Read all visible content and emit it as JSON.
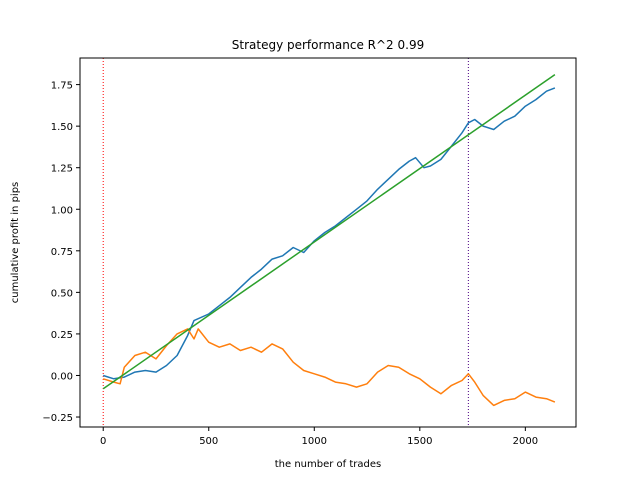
{
  "chart_data": {
    "type": "line",
    "title": "Strategy performance R^2 0.99",
    "xlabel": "the number of trades",
    "ylabel": "cumulative profit in pips",
    "xlim": [
      -110,
      2240
    ],
    "ylim": [
      -0.31,
      1.91
    ],
    "xticks": [
      0,
      500,
      1000,
      1500,
      2000
    ],
    "xtick_labels": [
      "0",
      "500",
      "1000",
      "1500",
      "2000"
    ],
    "yticks": [
      -0.25,
      0.0,
      0.25,
      0.5,
      0.75,
      1.0,
      1.25,
      1.5,
      1.75
    ],
    "ytick_labels": [
      "−0.25",
      "0.00",
      "0.25",
      "0.50",
      "0.75",
      "1.00",
      "1.25",
      "1.50",
      "1.75"
    ],
    "grid": false,
    "series": [
      {
        "color": "#1f77b4",
        "x": [
          0,
          50,
          100,
          150,
          200,
          250,
          300,
          350,
          400,
          430,
          500,
          550,
          600,
          650,
          700,
          750,
          800,
          850,
          900,
          950,
          1000,
          1050,
          1100,
          1150,
          1200,
          1250,
          1300,
          1350,
          1400,
          1450,
          1480,
          1520,
          1550,
          1600,
          1650,
          1700,
          1730,
          1760,
          1800,
          1850,
          1900,
          1950,
          2000,
          2050,
          2100,
          2140
        ],
        "y": [
          0.0,
          -0.02,
          -0.01,
          0.02,
          0.03,
          0.02,
          0.06,
          0.12,
          0.24,
          0.33,
          0.37,
          0.42,
          0.47,
          0.53,
          0.59,
          0.64,
          0.7,
          0.72,
          0.77,
          0.74,
          0.81,
          0.86,
          0.9,
          0.95,
          1.0,
          1.05,
          1.12,
          1.18,
          1.24,
          1.29,
          1.31,
          1.25,
          1.26,
          1.3,
          1.38,
          1.46,
          1.52,
          1.54,
          1.5,
          1.48,
          1.53,
          1.56,
          1.62,
          1.66,
          1.71,
          1.73
        ]
      },
      {
        "color": "#ff7f0e",
        "x": [
          0,
          50,
          80,
          100,
          150,
          200,
          250,
          300,
          350,
          400,
          430,
          450,
          500,
          550,
          600,
          650,
          700,
          750,
          800,
          850,
          900,
          950,
          1000,
          1050,
          1100,
          1150,
          1200,
          1250,
          1300,
          1350,
          1400,
          1450,
          1500,
          1550,
          1600,
          1650,
          1700,
          1730,
          1760,
          1800,
          1850,
          1900,
          1950,
          2000,
          2050,
          2100,
          2140
        ],
        "y": [
          -0.02,
          -0.04,
          -0.05,
          0.05,
          0.12,
          0.14,
          0.1,
          0.18,
          0.25,
          0.28,
          0.22,
          0.28,
          0.2,
          0.17,
          0.19,
          0.15,
          0.17,
          0.14,
          0.19,
          0.16,
          0.08,
          0.03,
          0.01,
          -0.01,
          -0.04,
          -0.05,
          -0.07,
          -0.05,
          0.02,
          0.06,
          0.05,
          0.01,
          -0.02,
          -0.07,
          -0.11,
          -0.06,
          -0.03,
          0.01,
          -0.04,
          -0.12,
          -0.18,
          -0.15,
          -0.14,
          -0.1,
          -0.13,
          -0.14,
          -0.16
        ]
      },
      {
        "color": "#2ca02c",
        "x": [
          0,
          2140
        ],
        "y": [
          -0.08,
          1.81
        ]
      }
    ],
    "vlines": [
      {
        "x": 0,
        "color": "#ff0000",
        "style": "dotted"
      },
      {
        "x": 1730,
        "color": "#4b0082",
        "style": "dotted"
      }
    ]
  }
}
